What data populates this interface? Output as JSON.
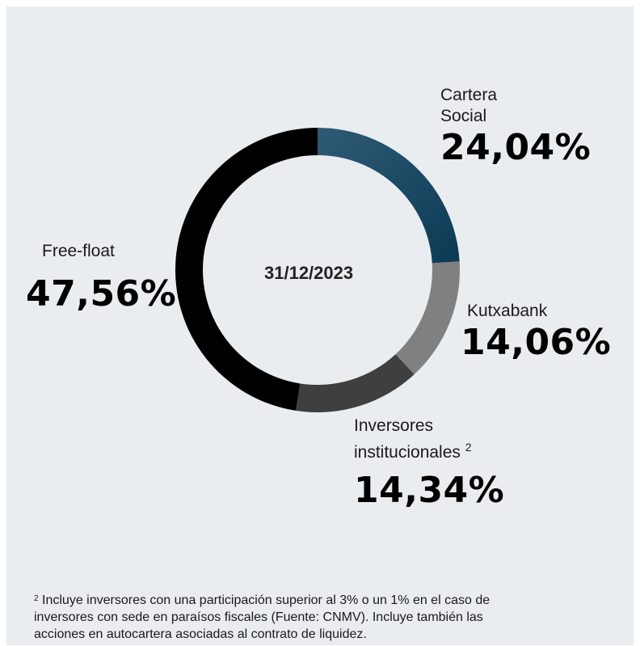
{
  "chart_data": {
    "type": "pie",
    "title": "",
    "center_label": "31/12/2023",
    "slices": [
      {
        "name": "Cartera Social",
        "value": 24.04,
        "display": "24,04%",
        "color": "#1e4a66"
      },
      {
        "name": "Kutxabank",
        "value": 14.06,
        "display": "14,06%",
        "color": "#808080"
      },
      {
        "name": "Inversores institucionales",
        "value": 14.34,
        "display": "14,34%",
        "color": "#3f3f3f",
        "footnote_ref": "2"
      },
      {
        "name": "Free-float",
        "value": 47.56,
        "display": "47,56%",
        "color": "#000000"
      }
    ]
  },
  "labels": {
    "cartera_l1": "Cartera",
    "cartera_l2": "Social",
    "kutxabank": "Kutxabank",
    "inversores_l1": "Inversores",
    "inversores_l2": "institucionales",
    "inversores_sup": "2",
    "freefloat": "Free-float"
  },
  "footnote": {
    "marker": "2",
    "line1": "Incluye inversores con una participación superior al 3% o un 1% en el caso de",
    "line2": "inversores con sede en paraísos fiscales (Fuente: CNMV). Incluye también las",
    "line3": "acciones en autocartera asociadas al contrato de liquidez."
  }
}
